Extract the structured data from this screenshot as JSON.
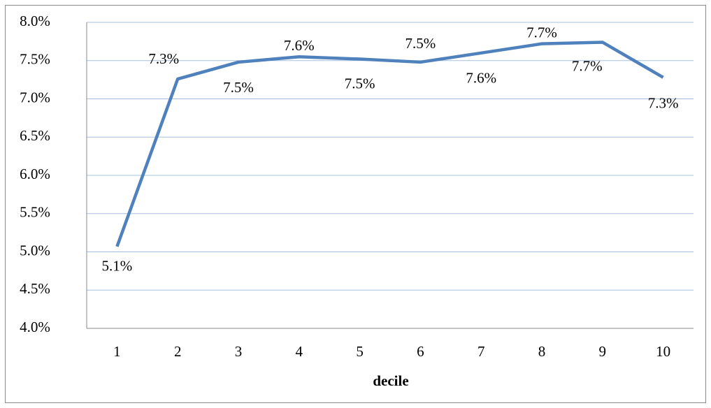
{
  "chart_data": {
    "type": "line",
    "x_label": "decile",
    "categories": [
      "1",
      "2",
      "3",
      "4",
      "5",
      "6",
      "7",
      "8",
      "9",
      "10"
    ],
    "values": [
      5.07,
      7.26,
      7.48,
      7.55,
      7.52,
      7.48,
      7.6,
      7.72,
      7.74,
      7.28
    ],
    "value_labels": [
      "5.1%",
      "7.3%",
      "7.5%",
      "7.6%",
      "7.5%",
      "7.5%",
      "7.6%",
      "7.7%",
      "7.7%",
      "7.3%"
    ],
    "color": "#4f81bd",
    "ylim": [
      4.0,
      8.0
    ],
    "yticks": [
      {
        "value": 4.0,
        "label": "4.0%"
      },
      {
        "value": 4.5,
        "label": "4.5%"
      },
      {
        "value": 5.0,
        "label": "5.0%"
      },
      {
        "value": 5.5,
        "label": "5.5%"
      },
      {
        "value": 6.0,
        "label": "6.0%"
      },
      {
        "value": 6.5,
        "label": "6.5%"
      },
      {
        "value": 7.0,
        "label": "7.0%"
      },
      {
        "value": 7.5,
        "label": "7.5%"
      },
      {
        "value": 8.0,
        "label": "8.0%"
      }
    ],
    "grid": true
  }
}
